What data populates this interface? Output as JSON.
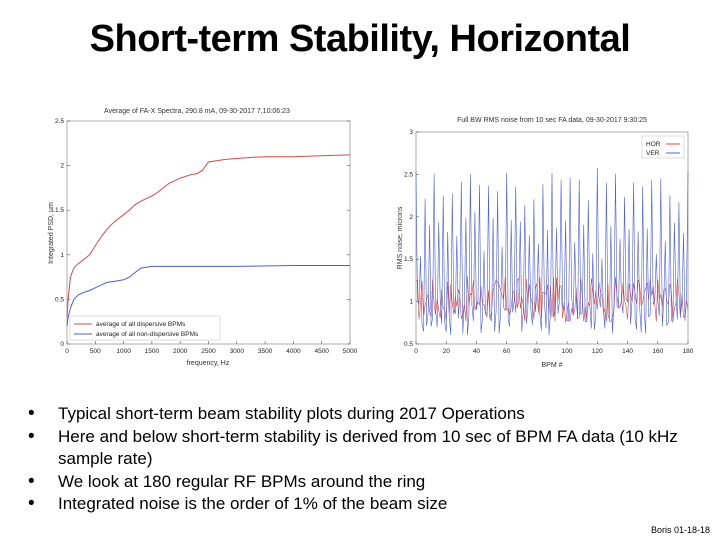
{
  "slide": {
    "title": "Short-term Stability, Horizontal",
    "footer": "Boris 01-18-18"
  },
  "bullets": [
    "Typical short-term beam stability plots during 2017 Operations",
    "Here and below short-term stability is derived from 10 sec of BPM FA data (10 kHz sample rate)",
    "We look at 180 regular RF BPMs around the ring",
    "Integrated noise is the order of 1% of the beam size"
  ],
  "chart_data": [
    {
      "type": "line",
      "title": "Average of FA-X Spectra, 290.8 mA, 09-30-2017 7,10:06:23",
      "xlabel": "frequency, Hz",
      "ylabel": "Integrated PSD, µm",
      "xlim": [
        0,
        5000
      ],
      "ylim": [
        0,
        2.5
      ],
      "xticks": [
        "0",
        "500",
        "1000",
        "1500",
        "2000",
        "2500",
        "3000",
        "3500",
        "4000",
        "4500",
        "5000"
      ],
      "yticks": [
        "0",
        "0.5",
        "1",
        "1.5",
        "2",
        "2.5"
      ],
      "legend": "bottom-left",
      "series": [
        {
          "name": "average of all dispersive BPMs",
          "color": "#d24b4b",
          "x": [
            0,
            20,
            60,
            120,
            200,
            300,
            400,
            500,
            600,
            700,
            800,
            900,
            1000,
            1100,
            1200,
            1300,
            1400,
            1500,
            1600,
            1700,
            1800,
            1900,
            2000,
            2100,
            2200,
            2300,
            2400,
            2450,
            2500,
            2600,
            2700,
            2800,
            3000,
            3200,
            3500,
            4000,
            4500,
            5000
          ],
          "y": [
            0.3,
            0.5,
            0.75,
            0.85,
            0.9,
            0.95,
            1.0,
            1.1,
            1.2,
            1.28,
            1.35,
            1.4,
            1.45,
            1.5,
            1.56,
            1.6,
            1.63,
            1.66,
            1.7,
            1.75,
            1.8,
            1.83,
            1.86,
            1.88,
            1.9,
            1.91,
            1.95,
            2.0,
            2.04,
            2.05,
            2.06,
            2.07,
            2.08,
            2.09,
            2.1,
            2.1,
            2.11,
            2.12
          ]
        },
        {
          "name": "average of all non-dispersive BPMs",
          "color": "#4d5fd4",
          "x": [
            0,
            20,
            60,
            120,
            200,
            300,
            400,
            500,
            600,
            700,
            800,
            900,
            1000,
            1100,
            1200,
            1300,
            1400,
            1500,
            2000,
            2500,
            3000,
            4000,
            5000
          ],
          "y": [
            0.2,
            0.3,
            0.4,
            0.5,
            0.55,
            0.58,
            0.6,
            0.63,
            0.66,
            0.69,
            0.7,
            0.71,
            0.72,
            0.75,
            0.8,
            0.85,
            0.86,
            0.87,
            0.87,
            0.87,
            0.87,
            0.88,
            0.88
          ]
        }
      ]
    },
    {
      "type": "line",
      "title": "Full BW RMS noise from 10 sec FA data, 09-30-2017 9:30:25",
      "xlabel": "BPM #",
      "ylabel": "RMS noise, microns",
      "xlim": [
        0,
        180
      ],
      "ylim": [
        0.5,
        3
      ],
      "xticks": [
        "0",
        "20",
        "40",
        "60",
        "80",
        "100",
        "120",
        "140",
        "160",
        "180"
      ],
      "yticks": [
        "0.5",
        "1",
        "1.5",
        "2",
        "2.5",
        "3"
      ],
      "legend": "top-right",
      "series": [
        {
          "name": "HOR",
          "color": "#d24b4b",
          "pattern": "low-ripple",
          "typical_range": [
            0.65,
            1.3
          ]
        },
        {
          "name": "VER",
          "color": "#4d5fd4",
          "pattern": "periodic-spikes",
          "typical_range": [
            0.6,
            2.6
          ]
        }
      ]
    }
  ]
}
